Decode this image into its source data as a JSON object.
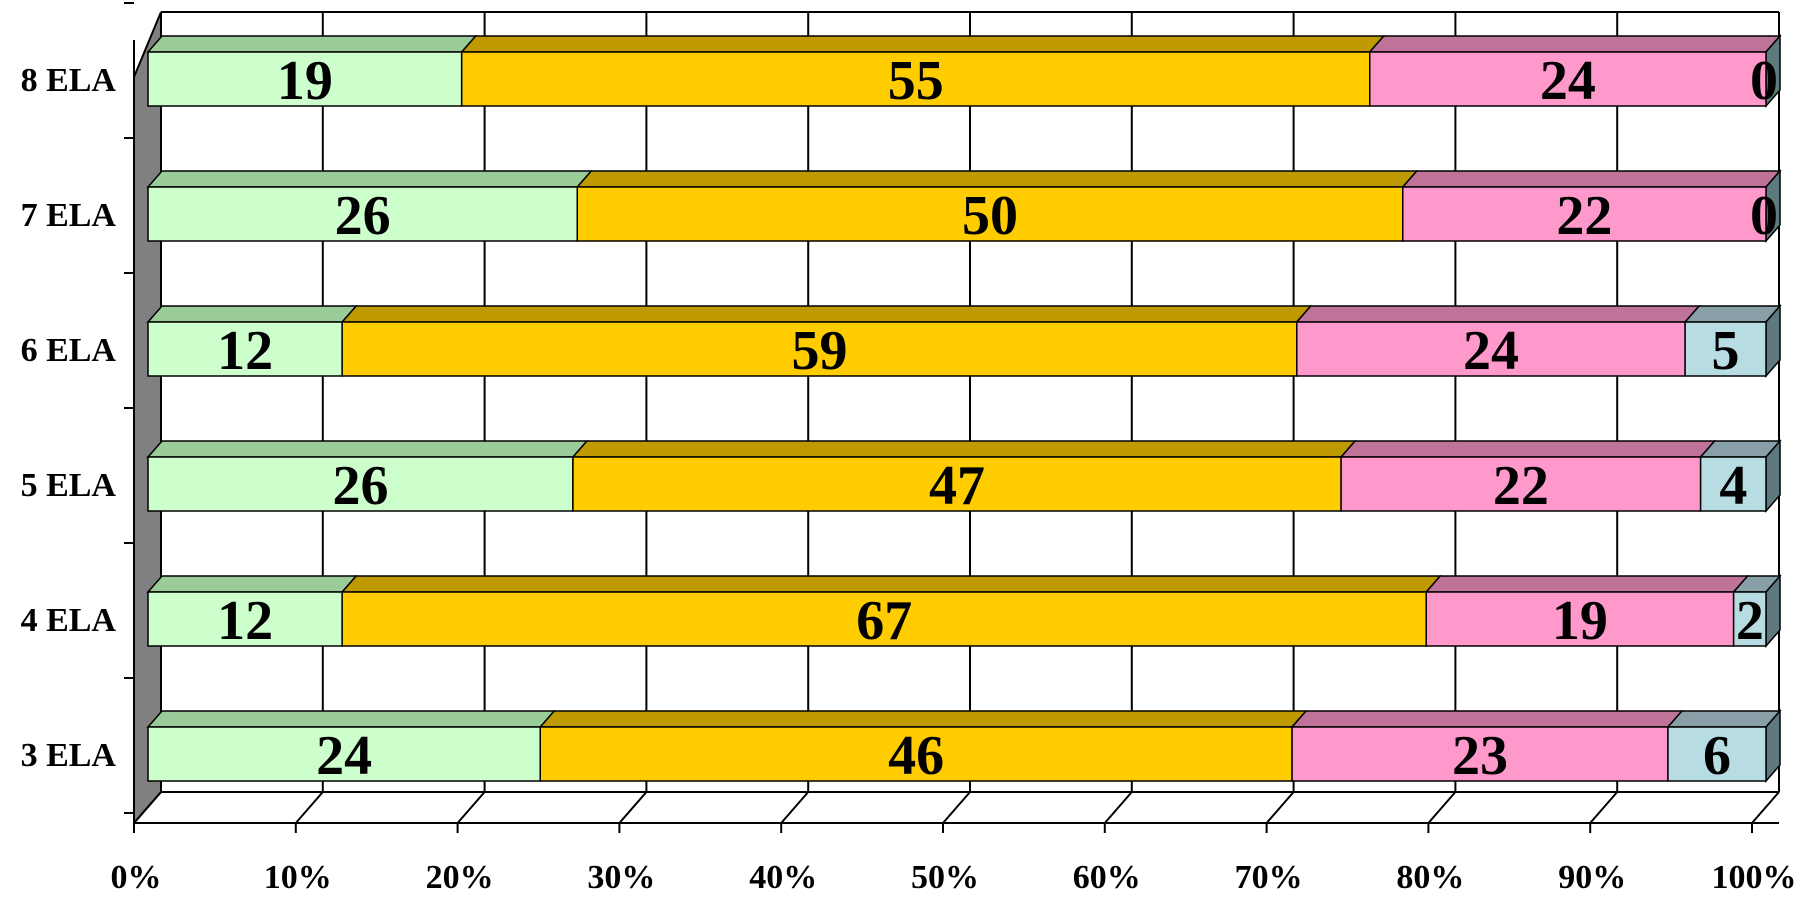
{
  "chart_data": {
    "type": "bar",
    "orientation": "horizontal",
    "stacked": "percent",
    "style": "3d",
    "categories": [
      "3 ELA",
      "4 ELA",
      "5 ELA",
      "6 ELA",
      "7 ELA",
      "8 ELA"
    ],
    "series": [
      {
        "values": [
          24,
          12,
          26,
          12,
          26,
          19
        ],
        "color": "#ccffcc",
        "top_color": "#99cc99"
      },
      {
        "values": [
          46,
          67,
          47,
          59,
          50,
          55
        ],
        "color": "#ffcc00",
        "top_color": "#bf9900"
      },
      {
        "values": [
          23,
          19,
          22,
          24,
          22,
          24
        ],
        "color": "#ff99cc",
        "top_color": "#bf7399"
      },
      {
        "values": [
          6,
          2,
          4,
          5,
          0,
          0
        ],
        "color": "#b7dde3",
        "top_color": "#899fa8"
      }
    ],
    "x_ticks": [
      "0%",
      "10%",
      "20%",
      "30%",
      "40%",
      "50%",
      "60%",
      "70%",
      "80%",
      "90%",
      "100%"
    ],
    "xlim": [
      0,
      100
    ],
    "grid": true,
    "legend": "none"
  }
}
